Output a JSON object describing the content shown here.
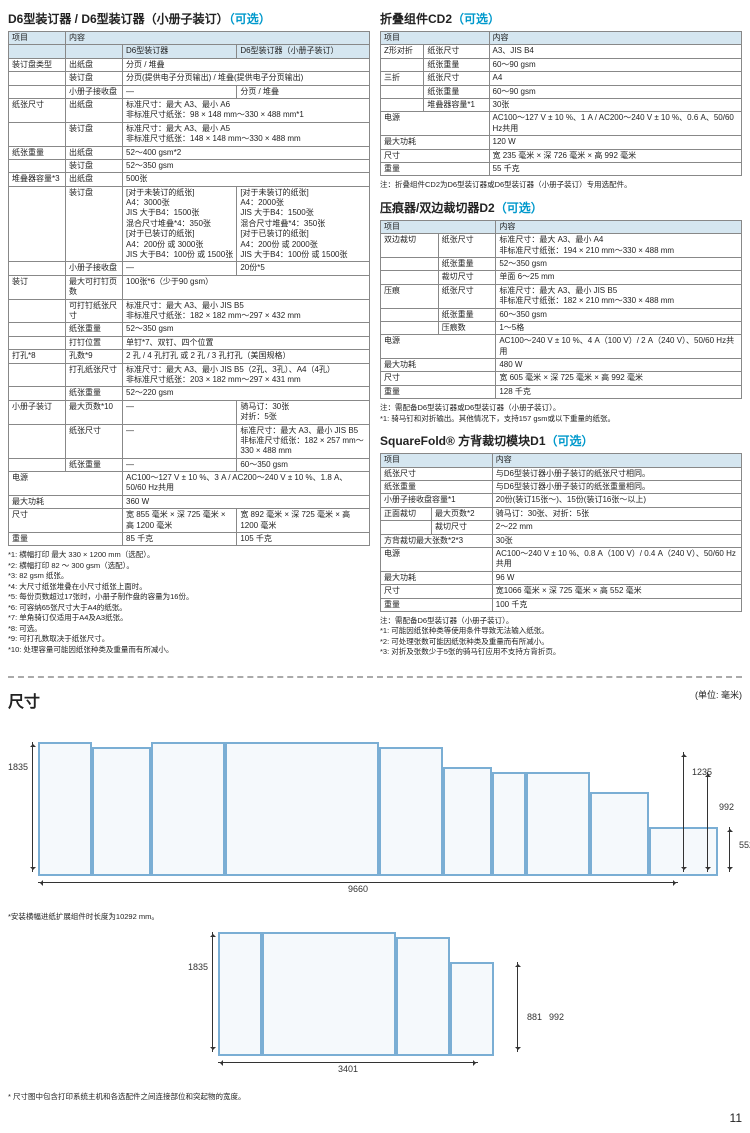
{
  "left": {
    "title": "D6型装订器 / D6型装订器（小册子装订）",
    "optional": "（可选）",
    "headers": [
      "项目",
      "内容"
    ],
    "subheaders": [
      "D6型装订器",
      "D6型装订器（小册子装订）"
    ],
    "rows": [
      {
        "c1": "装订盘类型",
        "c2": "出纸盘",
        "c3": "分页 / 堆叠",
        "span": 2
      },
      {
        "c1": "",
        "c2": "装订盘",
        "c3": "分页(提供电子分页输出) / 堆叠(提供电子分页输出)",
        "span": 2
      },
      {
        "c1": "",
        "c2": "小册子接收盘",
        "c3": "—",
        "c4": "分页 / 堆叠"
      },
      {
        "c1": "纸张尺寸",
        "c2": "出纸盘",
        "c3": "标准尺寸：最大 A3、最小 A6\n非标准尺寸纸张：98 × 148 mm～330 × 488 mm*1",
        "span": 2
      },
      {
        "c1": "",
        "c2": "装订盘",
        "c3": "标准尺寸：最大 A3、最小 A5\n非标准尺寸纸张：148 × 148 mm～330 × 488 mm",
        "span": 2
      },
      {
        "c1": "纸张重量",
        "c2": "出纸盘",
        "c3": "52～400 gsm*2",
        "span": 2
      },
      {
        "c1": "",
        "c2": "装订盘",
        "c3": "52～350 gsm",
        "span": 2
      },
      {
        "c1": "堆叠器容量*3",
        "c2": "出纸盘",
        "c3": "500张",
        "span": 2
      },
      {
        "c1": "",
        "c2": "装订盘",
        "c3": "[对于未装订的纸张]\nA4：3000张\nJIS 大于B4：1500张\n混合尺寸堆叠*4：350张\n[对于已装订的纸张]\nA4：200份 或 3000张\nJIS 大于B4：100份 或 1500张",
        "c4": "[对于未装订的纸张]\nA4：2000张\nJIS 大于B4：1500张\n混合尺寸堆叠*4：350张\n[对于已装订的纸张]\nA4：200份 或 2000张\nJIS 大于B4：100份 或 1500张"
      },
      {
        "c1": "",
        "c2": "小册子接收盘",
        "c3": "—",
        "c4": "20份*5"
      },
      {
        "c1": "装订",
        "c2": "最大可打钉页数",
        "c3": "100张*6（少于90 gsm）",
        "span": 2
      },
      {
        "c1": "",
        "c2": "可打钉纸张尺寸",
        "c3": "标准尺寸：最大 A3、最小 JIS B5\n非标准尺寸纸张：182 × 182 mm～297 × 432 mm",
        "span": 2
      },
      {
        "c1": "",
        "c2": "纸张重量",
        "c3": "52～350 gsm",
        "span": 2
      },
      {
        "c1": "",
        "c2": "打钉位置",
        "c3": "单钉*7、双钉、四个位置",
        "span": 2
      },
      {
        "c1": "打孔*8",
        "c2": "孔数*9",
        "c3": "2 孔 / 4 孔打孔 或 2 孔 / 3 孔打孔（美国规格）",
        "span": 2
      },
      {
        "c1": "",
        "c2": "打孔纸张尺寸",
        "c3": "标准尺寸：最大 A3、最小 JIS B5（2孔、3孔）、A4（4孔）\n非标准尺寸纸张：203 × 182 mm～297 × 431 mm",
        "span": 2
      },
      {
        "c1": "",
        "c2": "纸张重量",
        "c3": "52～220 gsm",
        "span": 2
      },
      {
        "c1": "小册子装订",
        "c2": "最大页数*10",
        "c3": "—",
        "c4": "骑马订：30张\n对折：5张"
      },
      {
        "c1": "",
        "c2": "纸张尺寸",
        "c3": "—",
        "c4": "标准尺寸：最大 A3、最小 JIS B5\n非标准尺寸纸张：182 × 257 mm～330 × 488 mm"
      },
      {
        "c1": "",
        "c2": "纸张重量",
        "c3": "—",
        "c4": "60～350 gsm"
      },
      {
        "c1": "电源",
        "c2": "",
        "c3": "AC100～127 V ± 10 %、3 A / AC200～240 V ± 10 %、1.8 A、50/60 Hz共用",
        "span": 3
      },
      {
        "c1": "最大功耗",
        "c2": "",
        "c3": "360 W",
        "span": 3
      },
      {
        "c1": "尺寸",
        "c2": "",
        "c3": "宽 855 毫米 × 深 725 毫米 × 高 1200 毫米",
        "c4": "宽 892 毫米 × 深 725 毫米 × 高 1200 毫米",
        "sp": 1
      },
      {
        "c1": "重量",
        "c2": "",
        "c3": "85 千克",
        "c4": "105 千克",
        "sp": 1
      }
    ],
    "notes": [
      "*1: 横幅打印 最大 330 × 1200 mm（选配）。",
      "*2: 横幅打印 82 ～ 300 gsm（选配）。",
      "*3: 82 gsm 纸张。",
      "*4: 大尺寸纸张堆叠在小尺寸纸张上面时。",
      "*5: 每份页数超过17张时，小册子制作盘的容量为16份。",
      "*6: 可容纳65张尺寸大于A4的纸张。",
      "*7: 单角骑订仅适用于A4及A3纸张。",
      "*8: 可选。",
      "*9: 可打孔数取决于纸张尺寸。",
      "*10: 处理容量可能因纸张种类及重量而有所减小。"
    ]
  },
  "rightA": {
    "title": "折叠组件CD2",
    "optional": "（可选）",
    "headers": [
      "项目",
      "内容"
    ],
    "rows": [
      {
        "c1": "Z形对折",
        "c2": "纸张尺寸",
        "c3": "A3、JIS B4"
      },
      {
        "c1": "",
        "c2": "纸张重量",
        "c3": "60～90 gsm"
      },
      {
        "c1": "三折",
        "c2": "纸张尺寸",
        "c3": "A4"
      },
      {
        "c1": "",
        "c2": "纸张重量",
        "c3": "60～90 gsm"
      },
      {
        "c1": "",
        "c2": "堆叠器容量*1",
        "c3": "30张"
      },
      {
        "c1": "电源",
        "c2": "",
        "c3": "AC100～127 V ± 10 %、1 A / AC200～240 V ± 10 %、0.6 A、50/60 Hz共用"
      },
      {
        "c1": "最大功耗",
        "c2": "",
        "c3": "120 W"
      },
      {
        "c1": "尺寸",
        "c2": "",
        "c3": "宽 235 毫米 × 深 726 毫米 × 高 992 毫米"
      },
      {
        "c1": "重量",
        "c2": "",
        "c3": "55 千克"
      }
    ],
    "notes": [
      "注：折叠组件CD2为D6型装订器或D6型装订器（小册子装订）专用选配件。"
    ]
  },
  "rightB": {
    "title": "压痕器/双边裁切器D2",
    "optional": "（可选）",
    "headers": [
      "项目",
      "内容"
    ],
    "rows": [
      {
        "c1": "双边裁切",
        "c2": "纸张尺寸",
        "c3": "标准尺寸：最大 A3、最小 A4\n非标准尺寸纸张：194 × 210 mm～330 × 488 mm"
      },
      {
        "c1": "",
        "c2": "纸张重量",
        "c3": "52～350 gsm"
      },
      {
        "c1": "",
        "c2": "裁切尺寸",
        "c3": "单面 6～25 mm"
      },
      {
        "c1": "压痕",
        "c2": "纸张尺寸",
        "c3": "标准尺寸：最大 A3、最小 JIS B5\n非标准尺寸纸张：182 × 210 mm～330 × 488 mm"
      },
      {
        "c1": "",
        "c2": "纸张重量",
        "c3": "60～350 gsm"
      },
      {
        "c1": "",
        "c2": "压痕数",
        "c3": "1～5格"
      },
      {
        "c1": "电源",
        "c2": "",
        "c3": "AC100～240 V ± 10 %、4 A（100 V）/ 2 A（240 V）、50/60 Hz共用"
      },
      {
        "c1": "最大功耗",
        "c2": "",
        "c3": "480 W"
      },
      {
        "c1": "尺寸",
        "c2": "",
        "c3": "宽 605 毫米 × 深 725 毫米 × 高 992 毫米"
      },
      {
        "c1": "重量",
        "c2": "",
        "c3": "128 千克"
      }
    ],
    "notes": [
      "注：需配备D6型装订器或D6型装订器（小册子装订）。",
      "*1: 骑马钉和对折输出。其他情况下，支持157 gsm或以下重量的纸张。"
    ]
  },
  "rightC": {
    "title": "SquareFold® 方背裁切模块D1",
    "optional": "（可选）",
    "headers": [
      "项目",
      "内容"
    ],
    "rows": [
      {
        "c1": "纸张尺寸",
        "c2": "",
        "c3": "与D6型装订器小册子装订的纸张尺寸相同。"
      },
      {
        "c1": "纸张重量",
        "c2": "",
        "c3": "与D6型装订器小册子装订的纸张重量相同。"
      },
      {
        "c1": "小册子接收盘容量*1",
        "c2": "",
        "c3": "20份(装订15张～)、15份(装订16张～以上)"
      },
      {
        "c1": "正面裁切",
        "c2": "最大页数*2",
        "c3": "骑马订：30张、对折：5张"
      },
      {
        "c1": "",
        "c2": "裁切尺寸",
        "c3": "2～22 mm"
      },
      {
        "c1": "方背裁切最大张数*2*3",
        "c2": "",
        "c3": "30张"
      },
      {
        "c1": "电源",
        "c2": "",
        "c3": "AC100～240 V ± 10 %、0.8 A（100 V）/ 0.4 A（240 V）、50/60 Hz共用"
      },
      {
        "c1": "最大功耗",
        "c2": "",
        "c3": "96 W"
      },
      {
        "c1": "尺寸",
        "c2": "",
        "c3": "宽1066 毫米 × 深 725 毫米 × 高 552 毫米"
      },
      {
        "c1": "重量",
        "c2": "",
        "c3": "100 千克"
      }
    ],
    "notes": [
      "注：需配备D6型装订器（小册子装订）。",
      "*1: 可能因纸张种类等使用条件导致无法输入纸张。",
      "*2: 可处理张数可能因纸张种类及重量而有所减小。",
      "*3: 对折及张数少于5张的骑马钉应用不支持方背折页。"
    ]
  },
  "dims": {
    "title": "尺寸",
    "unit": "(单位: 毫米)",
    "w_main": "9660",
    "h_main": "1835",
    "h_r1": "1235",
    "h_r2": "992",
    "h_r3": "552",
    "note1": "*安装横幅进纸扩展组件时长度为10292 mm。",
    "w_sub": "3401",
    "h_sub": "1835",
    "h_sub2": "881",
    "h_sub3": "992",
    "note2": "* 尺寸图中包含打印系统主机和各选配件之间连接部位和突起物的宽度。"
  },
  "page": "11"
}
